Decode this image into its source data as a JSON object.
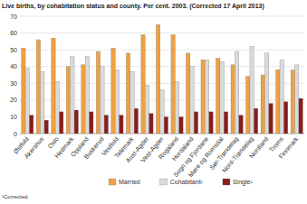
{
  "chart_data": {
    "type": "bar",
    "title": "Live births, by cohabitation status and county. Per cent. 2003. (Corrected 17 April 2013)",
    "categories": [
      "Østfold",
      "Akershus",
      "Oslo",
      "Hedmark",
      "Oppland",
      "Buskerud",
      "Vestfold",
      "Telemark",
      "Aust-Agder",
      "Vest-Agder",
      "Rogaland",
      "Hordaland",
      "Sogn og Fjordane",
      "Møre og Romsdal",
      "Sør-Trøndelag",
      "Nord-Trøndelag",
      "Nordland",
      "Troms",
      "Finnmark"
    ],
    "series": [
      {
        "name": "Married",
        "color": "#f0a040",
        "values": [
          51,
          56,
          57,
          40,
          41,
          49,
          51,
          48,
          59,
          65,
          59,
          48,
          44,
          45,
          41,
          34,
          35,
          38,
          38
        ]
      },
      {
        "name": "Cohabitant¹",
        "color": "#dadada",
        "values": [
          39,
          37,
          31,
          46,
          46,
          40,
          38,
          37,
          29,
          26,
          31,
          40,
          44,
          43,
          49,
          52,
          48,
          44,
          41
        ]
      },
      {
        "name": "Single¹",
        "color": "#8b1c1c",
        "values": [
          11,
          8,
          13,
          14,
          13,
          11,
          11,
          15,
          12,
          10,
          10,
          13,
          13,
          13,
          11,
          15,
          18,
          19,
          21
        ]
      }
    ],
    "ylim": [
      0,
      70
    ],
    "yticks": [
      0,
      10,
      20,
      30,
      40,
      50,
      60,
      70
    ],
    "grid": true,
    "legend": "bottom",
    "annotations": [
      "¹Corrected."
    ]
  }
}
